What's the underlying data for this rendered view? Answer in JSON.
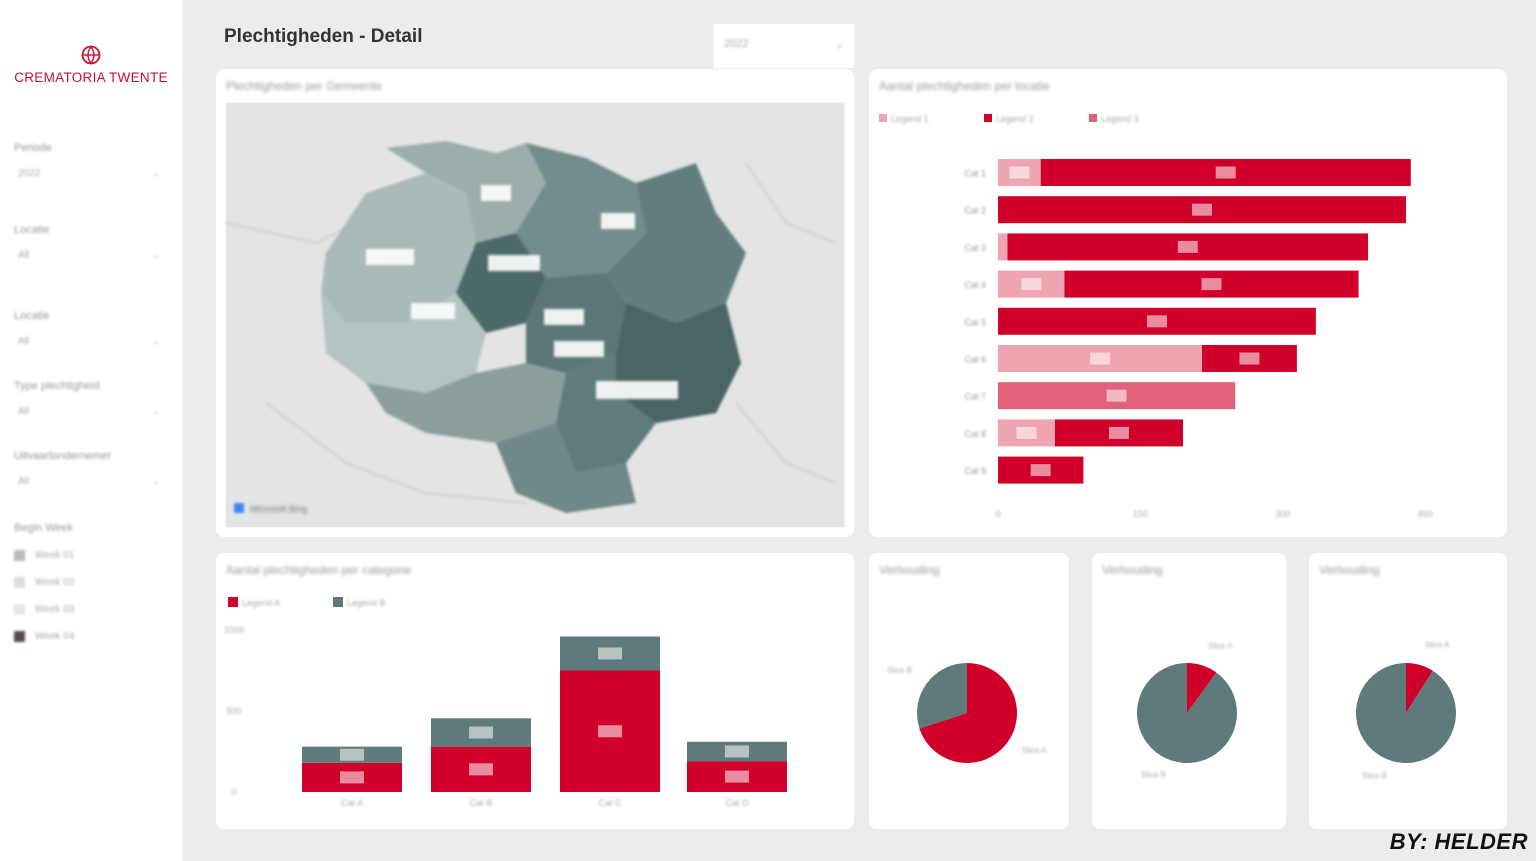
{
  "brand": {
    "name": "CREMATORIA TWENTE",
    "accent": "#c8102e",
    "logo_icon": "crematoria-logo-icon"
  },
  "page": {
    "title": "Plechtigheden - Detail"
  },
  "year_slicer": {
    "value": "2022",
    "icon": "chevron-down-icon"
  },
  "filters": [
    {
      "label": "Periode",
      "value": "2022"
    },
    {
      "label": "Locatie",
      "value": "All"
    },
    {
      "label": "Locatie",
      "value": "All"
    },
    {
      "label": "Type plechtigheid",
      "value": "All"
    },
    {
      "label": "Uitvaartondernemer",
      "value": "All"
    }
  ],
  "side_legend": {
    "title": "Begin Week",
    "items": [
      {
        "label": "Week 01",
        "color": "#bbbbbb"
      },
      {
        "label": "Week 02",
        "color": "#dddddd"
      },
      {
        "label": "Week 03",
        "color": "#e6e6e6"
      },
      {
        "label": "Week 04",
        "color": "#5a4a4a"
      }
    ]
  },
  "map_card": {
    "title": "Plechtigheden per Gemeente",
    "attribution": "Microsoft Bing"
  },
  "bar_card": {
    "title": "Aantal plechtigheden per locatie",
    "chart_data": {
      "type": "bar",
      "orientation": "horizontal",
      "stacked": true,
      "categories": [
        "Cat 1",
        "Cat 2",
        "Cat 3",
        "Cat 4",
        "Cat 5",
        "Cat 6",
        "Cat 7",
        "Cat 8",
        "Cat 9"
      ],
      "series": [
        {
          "name": "Legend 1",
          "color": "#eea4b1",
          "values": [
            45,
            0,
            10,
            70,
            0,
            215,
            0,
            60,
            0
          ]
        },
        {
          "name": "Legend 2",
          "color": "#d0002a",
          "values": [
            390,
            430,
            380,
            310,
            335,
            100,
            0,
            135,
            90
          ]
        },
        {
          "name": "Legend 3",
          "color": "#e3607a",
          "values": [
            0,
            0,
            0,
            0,
            0,
            0,
            250,
            0,
            0
          ]
        }
      ],
      "xlim": [
        0,
        450
      ],
      "xticks": [
        "0",
        "150",
        "300",
        "450"
      ]
    }
  },
  "col_card": {
    "title": "Aantal plechtigheden per categorie",
    "chart_data": {
      "type": "bar",
      "stacked": true,
      "categories": [
        "Cat A",
        "Cat B",
        "Cat C",
        "Cat D"
      ],
      "series": [
        {
          "name": "Legend A",
          "color": "#d0002a",
          "values": [
            180,
            280,
            750,
            190
          ]
        },
        {
          "name": "Legend B",
          "color": "#5e7a7a",
          "values": [
            100,
            175,
            210,
            120
          ]
        }
      ],
      "ylim": [
        0,
        1000
      ],
      "yticks": [
        "0",
        "500",
        "1000"
      ]
    }
  },
  "pies": [
    {
      "title": "Verhouding",
      "chart_data": {
        "type": "pie",
        "slices": [
          {
            "label": "Slice A",
            "value": 70,
            "color": "#d0002a"
          },
          {
            "label": "Slice B",
            "value": 30,
            "color": "#5e7a7a"
          }
        ]
      }
    },
    {
      "title": "Verhouding",
      "chart_data": {
        "type": "pie",
        "slices": [
          {
            "label": "Slice A",
            "value": 10,
            "color": "#d0002a"
          },
          {
            "label": "Slice B",
            "value": 90,
            "color": "#5e7a7a"
          }
        ]
      }
    },
    {
      "title": "Verhouding",
      "chart_data": {
        "type": "pie",
        "slices": [
          {
            "label": "Slice A",
            "value": 9,
            "color": "#d0002a"
          },
          {
            "label": "Slice B",
            "value": 91,
            "color": "#5e7a7a"
          }
        ]
      }
    }
  ],
  "byline": "BY: HELDER"
}
